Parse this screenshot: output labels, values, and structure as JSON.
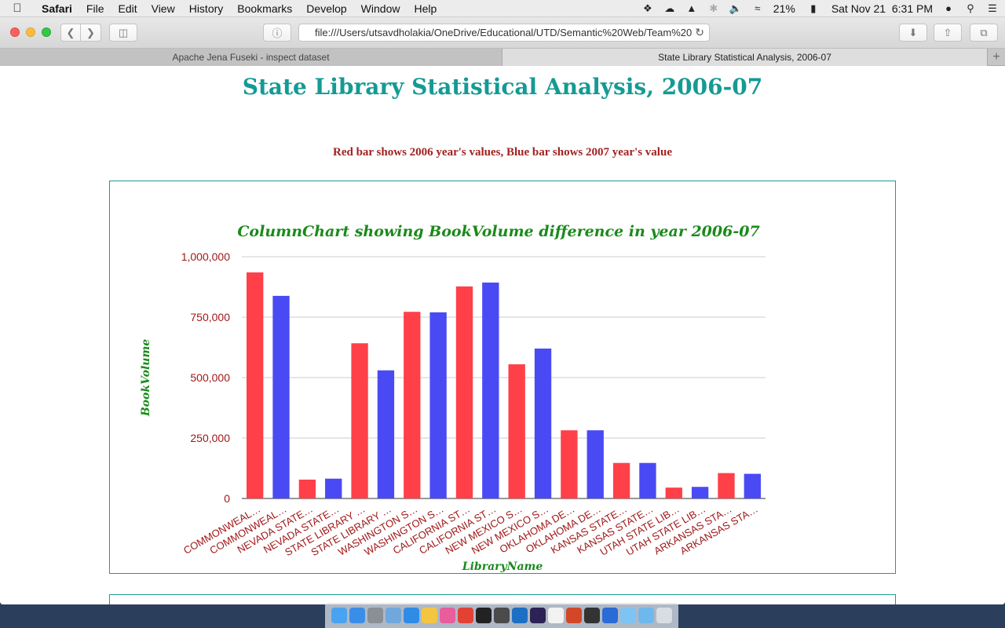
{
  "menubar": {
    "app": "Safari",
    "items": [
      "File",
      "Edit",
      "View",
      "History",
      "Bookmarks",
      "Develop",
      "Window",
      "Help"
    ],
    "battery": "21%",
    "clock": "Sat Nov 21  6:31 PM"
  },
  "browser": {
    "address": "file:///Users/utsavdholakia/OneDrive/Educational/UTD/Semantic%20Web/Team%20",
    "tabs": [
      "Apache Jena Fuseki - inspect dataset",
      "State Library Statistical Analysis, 2006-07"
    ]
  },
  "page": {
    "title": "State Library Statistical Analysis, 2006-07",
    "note": "Red bar shows 2006 year's values, Blue bar shows 2007 year's value"
  },
  "chart_data": {
    "type": "bar",
    "title": "ColumnChart showing BookVolume difference in year 2006-07",
    "xlabel": "LibraryName",
    "ylabel": "BookVolume",
    "ylim": [
      0,
      1000000
    ],
    "yticks": [
      "0",
      "250,000",
      "500,000",
      "750,000",
      "1,000,000"
    ],
    "grid": true,
    "categories": [
      "COMMONWEAL…",
      "COMMONWEAL…",
      "NEVADA STATE…",
      "NEVADA STATE…",
      "STATE LIBRARY …",
      "STATE LIBRARY …",
      "WASHINGTON S…",
      "WASHINGTON S…",
      "CALIFORNIA ST…",
      "CALIFORNIA ST…",
      "NEW MEXICO S…",
      "NEW MEXICO S…",
      "OKLAHOMA DE…",
      "OKLAHOMA DE…",
      "KANSAS STATE…",
      "KANSAS STATE…",
      "UTAH STATE LIB…",
      "UTAH STATE LIB…",
      "ARKANSAS STA…",
      "ARKANSAS STA…"
    ],
    "values": [
      935000,
      838000,
      78000,
      82000,
      642000,
      530000,
      772000,
      770000,
      877000,
      893000,
      555000,
      620000,
      282000,
      282000,
      147000,
      147000,
      45000,
      48000,
      105000,
      102000
    ],
    "colors": [
      "#ff4049",
      "#4a4af4"
    ]
  }
}
